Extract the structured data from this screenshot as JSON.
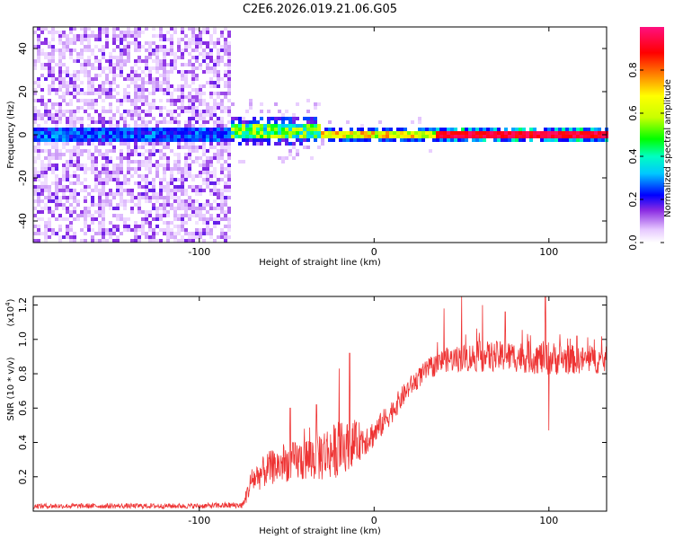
{
  "title": "C2E6.2026.019.21.06.G05",
  "colors": {
    "snr_line": "#ee3333",
    "axis": "#000000"
  },
  "chart_data": [
    {
      "type": "heatmap",
      "name": "spectrogram",
      "xlabel": "Height of straight line (km)",
      "ylabel": "Frequency (Hz)",
      "xlim": [
        -195,
        133
      ],
      "ylim": [
        -50,
        50
      ],
      "xticks": [
        -100,
        0,
        100
      ],
      "xtick_labels": [
        "-100",
        "0",
        "100"
      ],
      "yticks": [
        -40,
        -20,
        0,
        20,
        40
      ],
      "ytick_labels": [
        "-40",
        "-20",
        "0",
        "20",
        "40"
      ],
      "colorbar": {
        "label": "Normalized spectral amplitude",
        "range": [
          0,
          1
        ],
        "ticks": [
          0.0,
          0.2,
          0.4,
          0.6,
          0.8
        ],
        "tick_labels": [
          "0.0",
          "0.2",
          "0.4",
          "0.6",
          "0.8"
        ],
        "colormap": "rainbow (white-violet-blue-cyan-green-yellow-red-magenta)"
      },
      "features": [
        {
          "region_x": [
            -195,
            -81
          ],
          "description": "broadband noise, amplitude ~0.0-0.15, faint band near 0 Hz ~0.2-0.3"
        },
        {
          "region_x": [
            -81,
            -30
          ],
          "description": "signal near 0 Hz with spread +/-5 Hz, amplitude ~0.3-0.6"
        },
        {
          "region_x": [
            -30,
            35
          ],
          "description": "narrow tone at 0 Hz, amplitude ~0.5-0.8"
        },
        {
          "region_x": [
            35,
            133
          ],
          "description": "narrow tone at 0 Hz, amplitude ~0.9-1.0"
        }
      ]
    },
    {
      "type": "line",
      "name": "snr",
      "xlabel": "Height of straight line (km)",
      "ylabel": "SNR (10 * v/v)",
      "y_multiplier": "(x10",
      "y_multiplier_exp": "4",
      "y_multiplier_close": ")",
      "xlim": [
        -195,
        133
      ],
      "ylim": [
        0,
        1.25
      ],
      "xticks": [
        -100,
        0,
        100
      ],
      "xtick_labels": [
        "-100",
        "0",
        "100"
      ],
      "yticks": [
        0.2,
        0.4,
        0.6,
        0.8,
        1.0,
        1.2
      ],
      "ytick_labels": [
        "0.2",
        "0.4",
        "0.6",
        "0.8",
        "1.0",
        "1.2"
      ],
      "series": [
        {
          "name": "SNR",
          "anchor_x": [
            -195,
            -100,
            -75,
            -70,
            -60,
            -50,
            -40,
            -30,
            -20,
            -10,
            0,
            10,
            20,
            30,
            40,
            60,
            80,
            100,
            120,
            133
          ],
          "anchor_mean": [
            0.03,
            0.03,
            0.035,
            0.18,
            0.25,
            0.28,
            0.3,
            0.33,
            0.36,
            0.4,
            0.45,
            0.58,
            0.72,
            0.82,
            0.88,
            0.9,
            0.9,
            0.89,
            0.88,
            0.88
          ],
          "anchor_noise": [
            0.015,
            0.015,
            0.02,
            0.08,
            0.1,
            0.11,
            0.13,
            0.16,
            0.16,
            0.12,
            0.08,
            0.07,
            0.06,
            0.06,
            0.07,
            0.09,
            0.09,
            0.1,
            0.08,
            0.08
          ],
          "spikes": [
            [
              -14,
              0.92
            ],
            [
              -20,
              0.83
            ],
            [
              -48,
              0.6
            ],
            [
              -33,
              0.62
            ],
            [
              40,
              1.18
            ],
            [
              50,
              1.25
            ],
            [
              62,
              1.2
            ],
            [
              75,
              1.16
            ],
            [
              98,
              1.25
            ],
            [
              100,
              0.47
            ],
            [
              116,
              1.02
            ],
            [
              126,
              1.0
            ]
          ]
        }
      ]
    }
  ]
}
